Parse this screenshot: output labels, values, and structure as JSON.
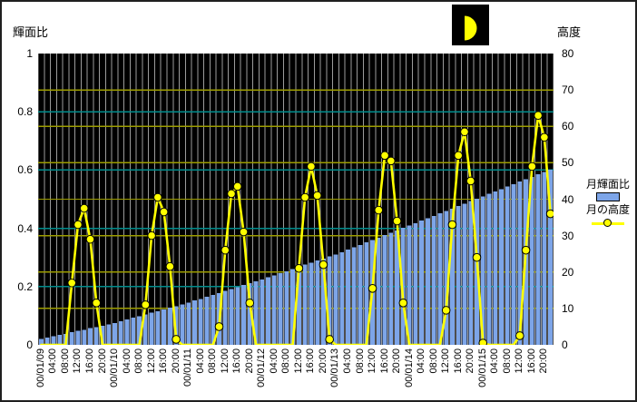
{
  "frame": {
    "bg": "#ffffff",
    "border_color": "#1f1f1f"
  },
  "moon_icon": {
    "label": "first-quarter-moon",
    "bg": "#000000",
    "fill": "#ffff00"
  },
  "left_axis": {
    "title": "輝面比",
    "tick_labels": [
      "1",
      "0.8",
      "0.6",
      "0.4",
      "0.2",
      "0"
    ],
    "min": 0,
    "max": 1
  },
  "right_axis": {
    "title": "高度",
    "tick_labels": [
      "80",
      "70",
      "60",
      "50",
      "40",
      "30",
      "20",
      "10",
      "0"
    ],
    "min": 0,
    "max": 80
  },
  "legend": {
    "bar_label": "月輝面比",
    "line_label": "月の高度"
  },
  "colors": {
    "bar": "#7DA5E8",
    "line": "#FFFF00",
    "marker_fill": "#FFFF00",
    "marker_stroke": "#000000",
    "plot_bg": "#000000",
    "grid_vertical": "#9B9B9B",
    "grid_left_axis": "#008C8C",
    "grid_right_axis": "#9C9C00"
  },
  "chart_data": {
    "type": "combo-bar-line",
    "x_step_hours": 2,
    "x_tick_step_hours": 4,
    "x_tick_labels": [
      "00/01/09",
      "04:00",
      "08:00",
      "12:00",
      "16:00",
      "20:00",
      "00/01/10",
      "04:00",
      "08:00",
      "12:00",
      "16:00",
      "20:00",
      "00/01/11",
      "04:00",
      "08:00",
      "12:00",
      "16:00",
      "20:00",
      "00/01/12",
      "04:00",
      "08:00",
      "12:00",
      "16:00",
      "20:00",
      "00/01/13",
      "04:00",
      "08:00",
      "12:00",
      "16:00",
      "20:00",
      "00/01/14",
      "04:00",
      "08:00",
      "12:00",
      "16:00",
      "20:00",
      "00/01/15",
      "04:00",
      "08:00",
      "12:00",
      "16:00",
      "20:00"
    ],
    "left_axis_range": [
      0,
      1
    ],
    "right_axis_range": [
      0,
      80
    ],
    "grid": {
      "vertical_every_hours": 2,
      "left_axis_every": 0.2,
      "right_axis_every": 10
    },
    "legend_position": "right",
    "plot_background": "black",
    "series": [
      {
        "name": "月輝面比",
        "type": "bar",
        "axis": "left",
        "values": [
          0.02,
          0.025,
          0.029,
          0.034,
          0.038,
          0.043,
          0.048,
          0.052,
          0.057,
          0.061,
          0.066,
          0.07,
          0.075,
          0.081,
          0.087,
          0.093,
          0.098,
          0.104,
          0.11,
          0.116,
          0.122,
          0.128,
          0.133,
          0.139,
          0.145,
          0.152,
          0.158,
          0.165,
          0.172,
          0.178,
          0.185,
          0.192,
          0.198,
          0.205,
          0.212,
          0.218,
          0.225,
          0.232,
          0.239,
          0.246,
          0.253,
          0.26,
          0.268,
          0.275,
          0.282,
          0.289,
          0.296,
          0.303,
          0.31,
          0.318,
          0.327,
          0.335,
          0.343,
          0.352,
          0.36,
          0.368,
          0.377,
          0.385,
          0.393,
          0.402,
          0.41,
          0.418,
          0.427,
          0.435,
          0.443,
          0.452,
          0.46,
          0.468,
          0.477,
          0.485,
          0.493,
          0.502,
          0.51,
          0.518,
          0.527,
          0.535,
          0.543,
          0.552,
          0.56,
          0.568,
          0.577,
          0.585,
          0.593,
          0.602
        ]
      },
      {
        "name": "月の高度",
        "type": "line",
        "axis": "right",
        "values": [
          0,
          0,
          0,
          0,
          0,
          17,
          33,
          37.5,
          29,
          11.5,
          0,
          0,
          0,
          0,
          0,
          0,
          0,
          11,
          30,
          40.5,
          36.5,
          21.5,
          1.5,
          0,
          0,
          0,
          0,
          0,
          0,
          5,
          26,
          41.5,
          43.5,
          31,
          11.5,
          0,
          0,
          0,
          0,
          0,
          0,
          0,
          21,
          40.5,
          49,
          41,
          22,
          1.5,
          0,
          0,
          0,
          0,
          0,
          0,
          15.5,
          37,
          52,
          50.5,
          34,
          11.5,
          0,
          0,
          0,
          0,
          0,
          0,
          9.5,
          33,
          52,
          58.5,
          45,
          24,
          0.5,
          0,
          0,
          0,
          0,
          0,
          2.5,
          26,
          49,
          63,
          57,
          36
        ]
      }
    ]
  }
}
